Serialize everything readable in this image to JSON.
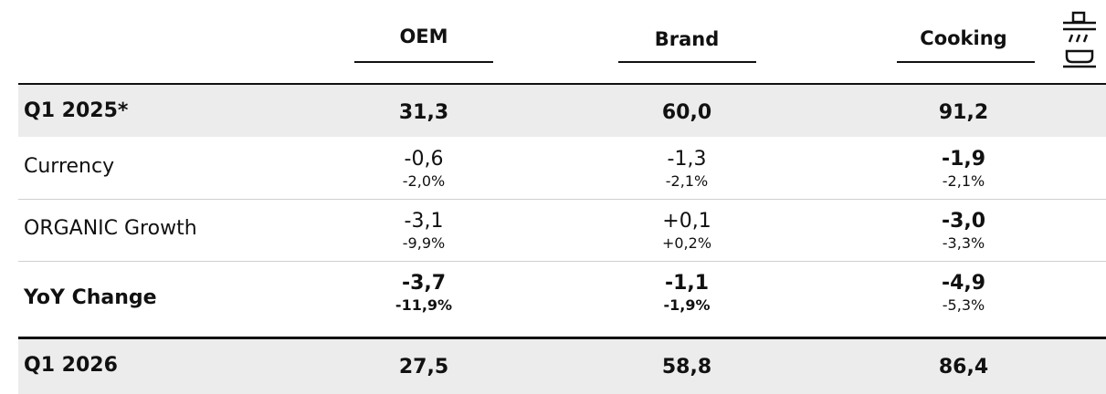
{
  "table": {
    "columns": [
      "OEM",
      "Brand",
      "Cooking"
    ],
    "rows": [
      {
        "label": "Q1 2025*",
        "cells": [
          {
            "value": "31,3"
          },
          {
            "value": "60,0"
          },
          {
            "value": "91,2"
          }
        ]
      },
      {
        "label": "Currency",
        "cells": [
          {
            "value": "-0,6",
            "pct": "-2,0%"
          },
          {
            "value": "-1,3",
            "pct": "-2,1%"
          },
          {
            "value": "-1,9",
            "pct": "-2,1%"
          }
        ]
      },
      {
        "label": "ORGANIC Growth",
        "cells": [
          {
            "value": "-3,1",
            "pct": "-9,9%"
          },
          {
            "value": "+0,1",
            "pct": "+0,2%"
          },
          {
            "value": "-3,0",
            "pct": "-3,3%"
          }
        ]
      },
      {
        "label": "YoY Change",
        "cells": [
          {
            "value": "-3,7",
            "pct": "-11,9%"
          },
          {
            "value": "-1,1",
            "pct": "-1,9%"
          },
          {
            "value": "-4,9",
            "pct": "-5,3%"
          }
        ]
      },
      {
        "label": "Q1 2026",
        "cells": [
          {
            "value": "27,5"
          },
          {
            "value": "58,8"
          },
          {
            "value": "86,4"
          }
        ]
      }
    ]
  }
}
